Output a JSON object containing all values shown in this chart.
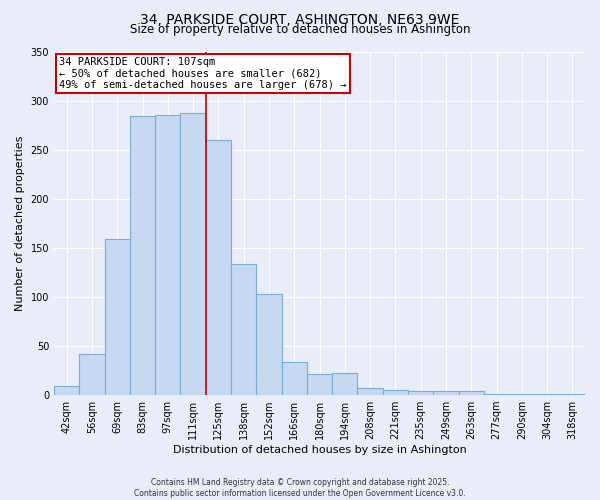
{
  "title": "34, PARKSIDE COURT, ASHINGTON, NE63 9WE",
  "subtitle": "Size of property relative to detached houses in Ashington",
  "xlabel": "Distribution of detached houses by size in Ashington",
  "ylabel": "Number of detached properties",
  "bin_labels": [
    "42sqm",
    "56sqm",
    "69sqm",
    "83sqm",
    "97sqm",
    "111sqm",
    "125sqm",
    "138sqm",
    "152sqm",
    "166sqm",
    "180sqm",
    "194sqm",
    "208sqm",
    "221sqm",
    "235sqm",
    "249sqm",
    "263sqm",
    "277sqm",
    "290sqm",
    "304sqm",
    "318sqm"
  ],
  "bar_heights": [
    9,
    42,
    159,
    284,
    285,
    287,
    260,
    134,
    103,
    34,
    21,
    22,
    7,
    5,
    4,
    4,
    4,
    1,
    1,
    1,
    1
  ],
  "bar_color": "#c6d9f0",
  "bar_edge_color": "#7aadd4",
  "vline_x_idx": 5.5,
  "vline_color": "#cc0000",
  "ylim": [
    0,
    350
  ],
  "yticks": [
    0,
    50,
    100,
    150,
    200,
    250,
    300,
    350
  ],
  "annotation_title": "34 PARKSIDE COURT: 107sqm",
  "annotation_line1": "← 50% of detached houses are smaller (682)",
  "annotation_line2": "49% of semi-detached houses are larger (678) →",
  "annotation_box_facecolor": "#ffffff",
  "annotation_box_edgecolor": "#cc0000",
  "footer1": "Contains HM Land Registry data © Crown copyright and database right 2025.",
  "footer2": "Contains public sector information licensed under the Open Government Licence v3.0.",
  "background_color": "#e8edf8",
  "grid_color": "#ffffff",
  "title_fontsize": 10,
  "subtitle_fontsize": 8.5,
  "tick_fontsize": 7,
  "xlabel_fontsize": 8,
  "ylabel_fontsize": 8,
  "annotation_fontsize": 7.5,
  "footer_fontsize": 5.5
}
